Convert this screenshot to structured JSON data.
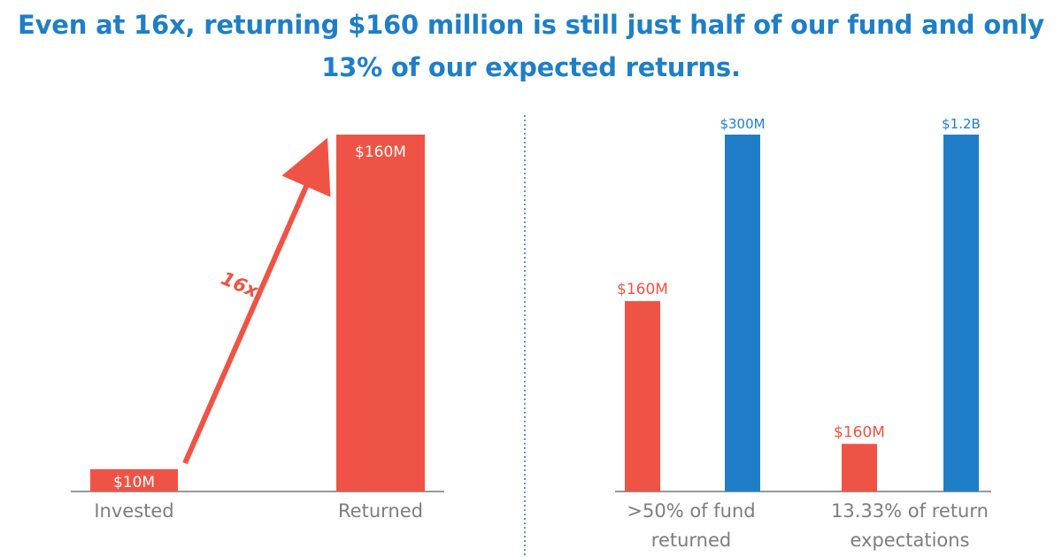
{
  "title": {
    "line1": "Even at 16x, returning $160 million is still just half of our fund and only",
    "line2": "13% of our expected returns."
  },
  "colors": {
    "red": "#ef5345",
    "blue": "#1f7ec7",
    "axis": "#777777",
    "text": "#7d7d7d"
  },
  "chart_data": [
    {
      "type": "bar",
      "categories": [
        "Invested",
        "Returned"
      ],
      "values": [
        10,
        160
      ],
      "value_labels": [
        "$10M",
        "$160M"
      ],
      "annotation": "16x",
      "ylim": [
        0,
        160
      ]
    },
    {
      "type": "bar",
      "categories": [
        ">50% of fund returned",
        "13.33% of return expectations"
      ],
      "category_lines": [
        [
          ">50% of fund",
          "returned"
        ],
        [
          "13.33% of return",
          "expectations"
        ]
      ],
      "series": [
        {
          "values": [
            160,
            160
          ],
          "value_labels": [
            "$160M",
            "$160M"
          ]
        },
        {
          "values": [
            300,
            1200
          ],
          "value_labels": [
            "$300M",
            "$1.2B"
          ]
        }
      ],
      "normalized_within_group": true
    }
  ]
}
